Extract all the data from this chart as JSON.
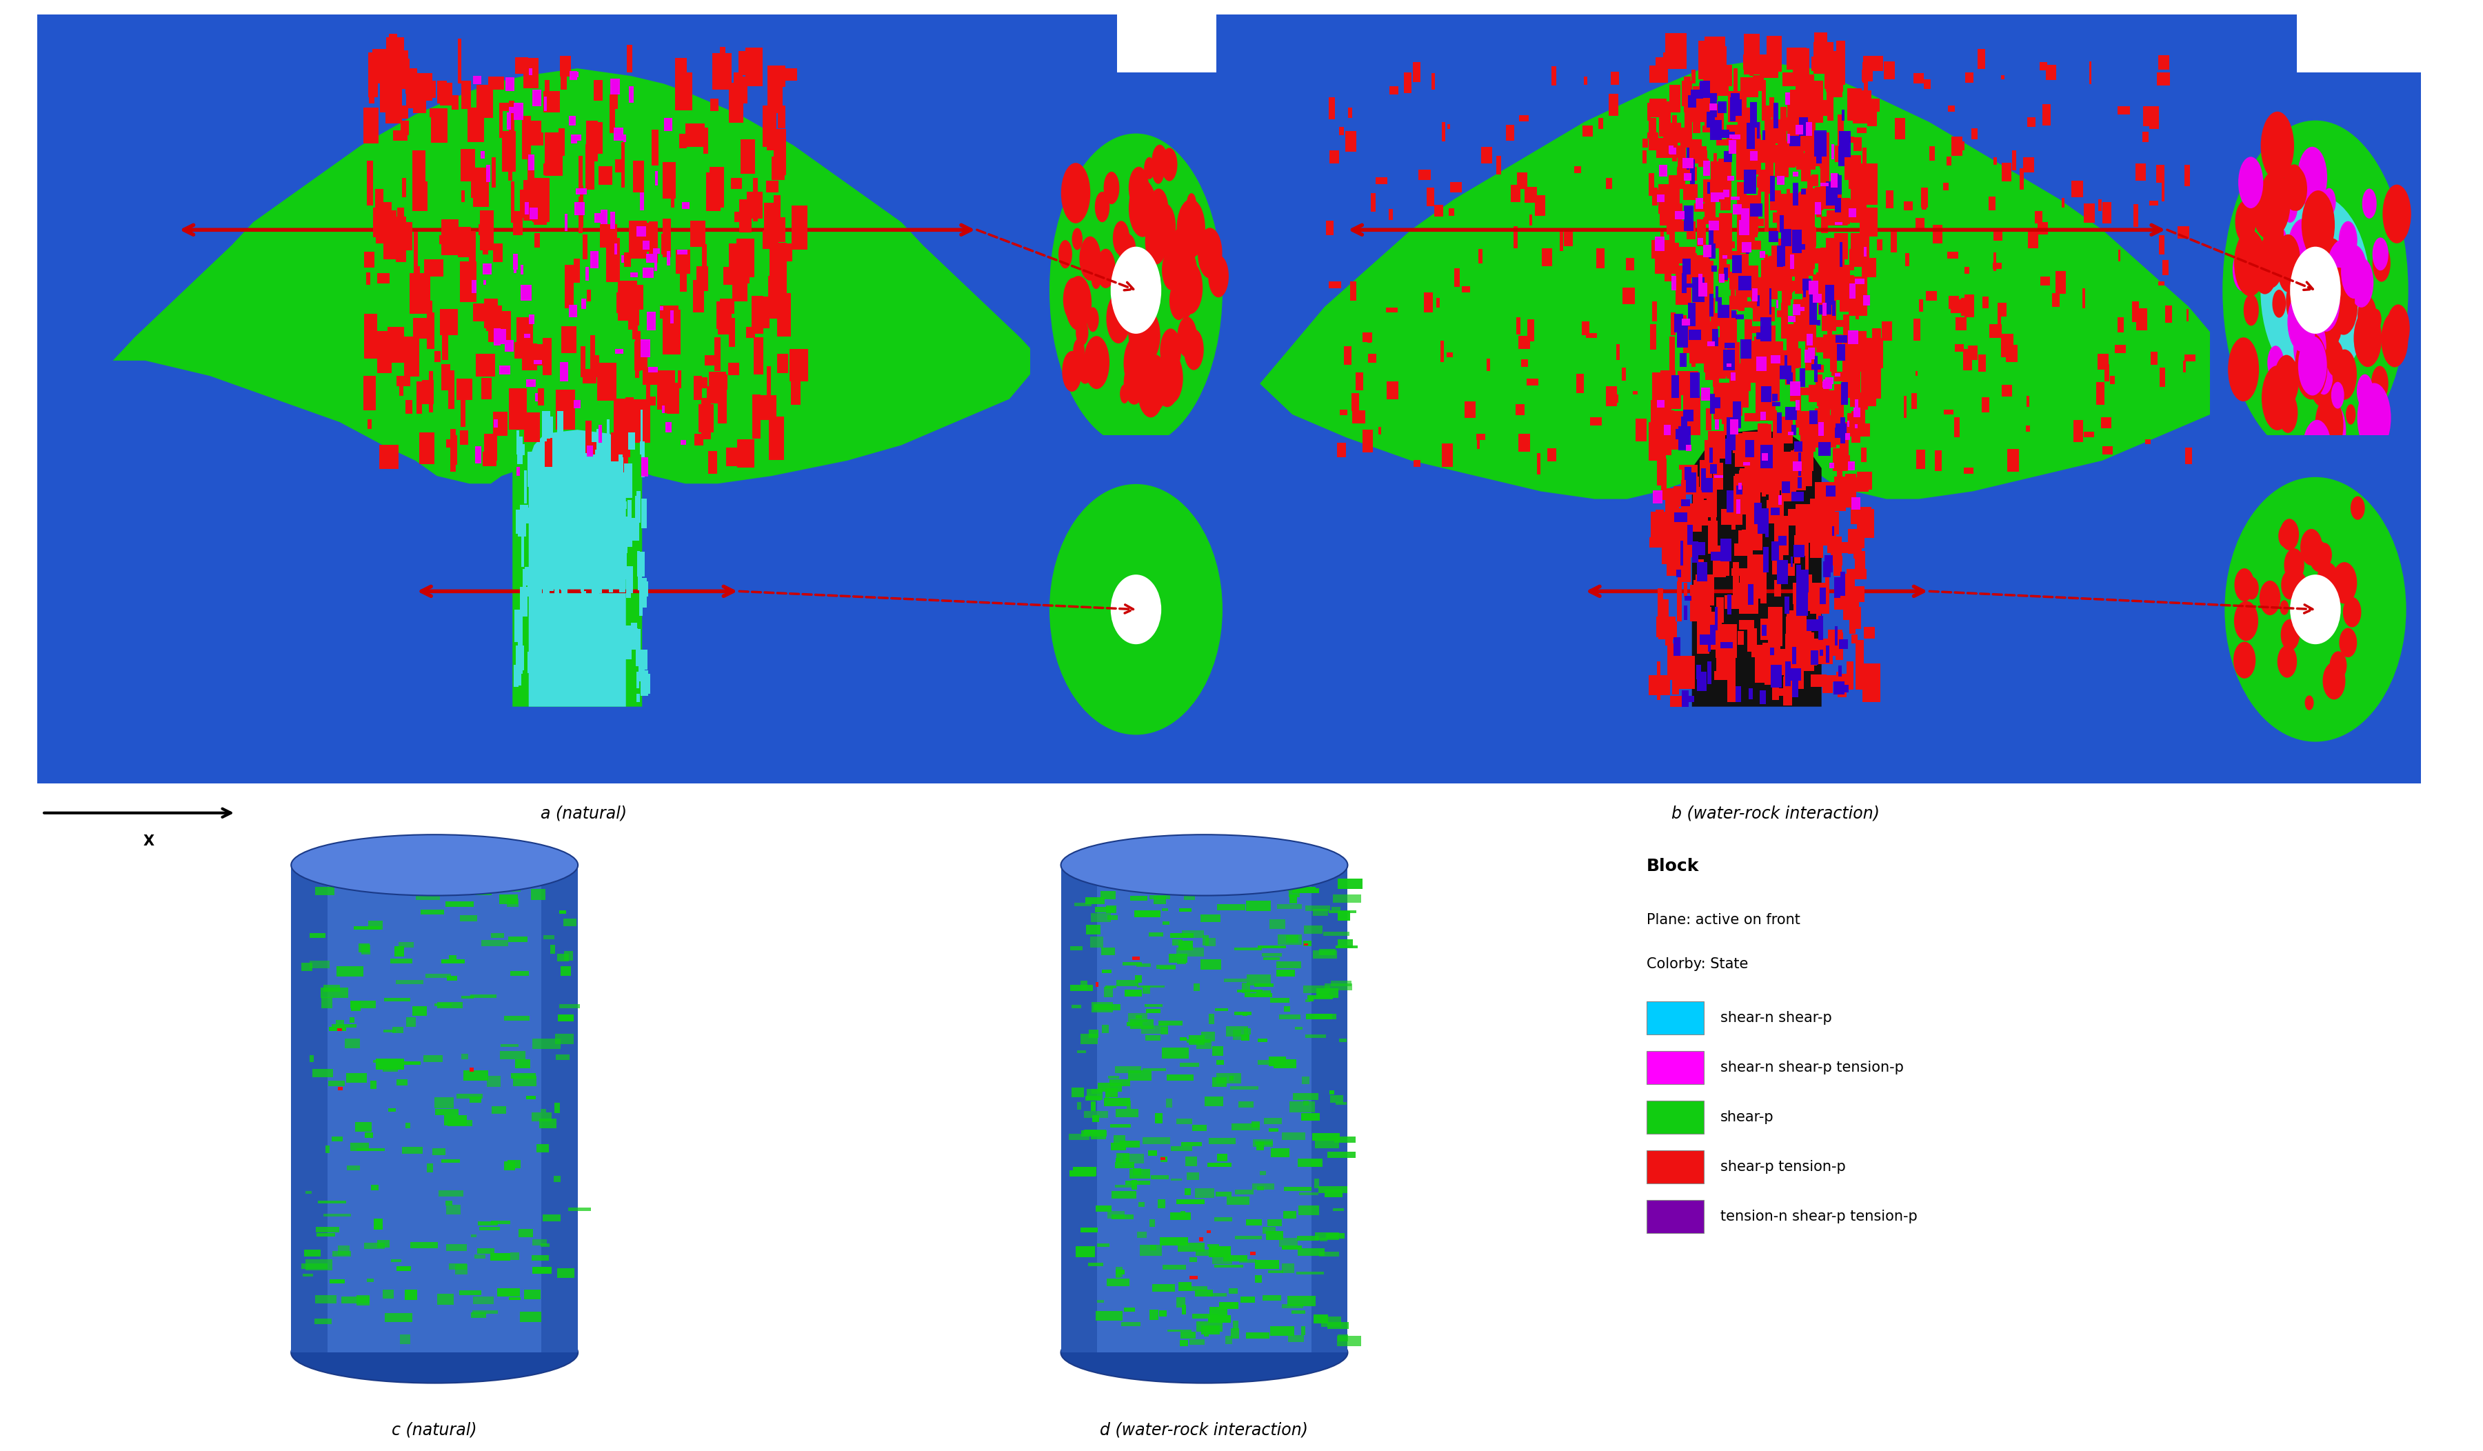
{
  "fig_width": 36.01,
  "fig_height": 21.04,
  "bg_color": "#ffffff",
  "blue_bg": "#2255cc",
  "blue_bg2": "#1a50bb",
  "green_main": "#11cc11",
  "red_spots": "#ee1111",
  "cyan_color": "#44dddd",
  "magenta_color": "#ee00ee",
  "blue_dark": "#0000bb",
  "title_a": "a (natural)",
  "title_b": "b (water-rock interaction)",
  "title_c": "c (natural)",
  "title_d": "d (water-rock interaction)",
  "legend_title": "Block",
  "legend_sub1": "Plane: active on front",
  "legend_sub2": "Colorby: State",
  "legend_items": [
    {
      "color": "#00ccff",
      "label": "shear-n shear-p"
    },
    {
      "color": "#ff00ff",
      "label": "shear-n shear-p tension-p"
    },
    {
      "color": "#11cc11",
      "label": "shear-p"
    },
    {
      "color": "#ee1111",
      "label": "shear-p tension-p"
    },
    {
      "color": "#7700aa",
      "label": "tension-n shear-p tension-p"
    }
  ],
  "arrow_color": "#cc0000"
}
